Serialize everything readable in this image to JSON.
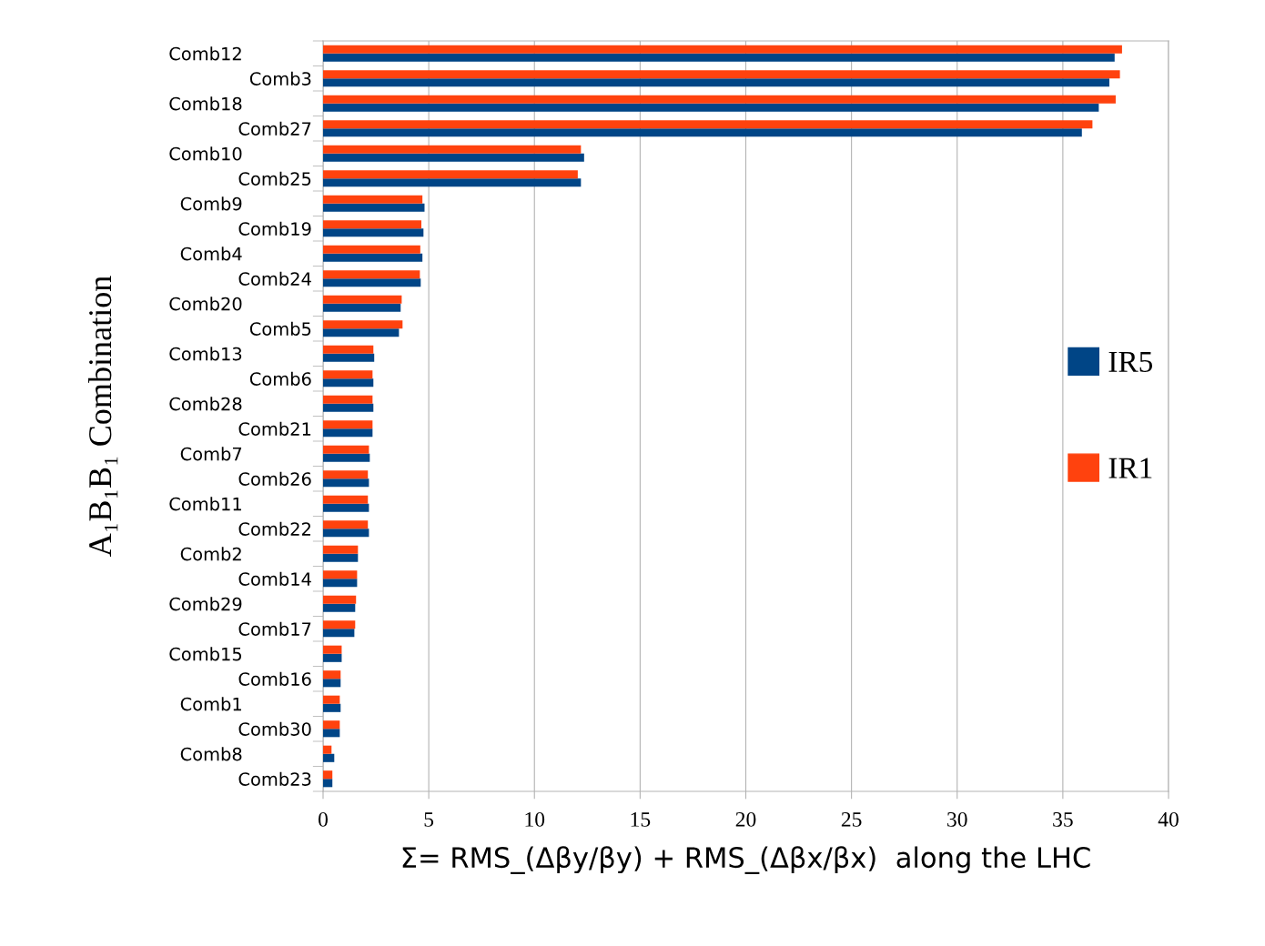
{
  "chart_data": {
    "type": "bar",
    "orientation": "horizontal",
    "xlabel": "Σ= RMS_(Δβy/βy) + RMS_(Δβx/βx)  along the LHC",
    "ylabel": "A₁B₁B₁ Combination",
    "categories": [
      "Comb12",
      "Comb3",
      "Comb18",
      "Comb27",
      "Comb10",
      "Comb25",
      "Comb9",
      "Comb19",
      "Comb4",
      "Comb24",
      "Comb20",
      "Comb5",
      "Comb13",
      "Comb6",
      "Comb28",
      "Comb21",
      "Comb7",
      "Comb26",
      "Comb11",
      "Comb22",
      "Comb2",
      "Comb14",
      "Comb29",
      "Comb17",
      "Comb15",
      "Comb16",
      "Comb1",
      "Comb30",
      "Comb8",
      "Comb23"
    ],
    "series": [
      {
        "name": "IR5",
        "color": "#004586",
        "values": [
          37.45,
          37.2,
          36.7,
          35.9,
          12.35,
          12.2,
          4.8,
          4.75,
          4.7,
          4.62,
          3.67,
          3.59,
          2.42,
          2.38,
          2.38,
          2.34,
          2.21,
          2.17,
          2.17,
          2.17,
          1.65,
          1.61,
          1.52,
          1.48,
          0.88,
          0.83,
          0.83,
          0.79,
          0.53,
          0.44
        ]
      },
      {
        "name": "IR1",
        "color": "#ff420e",
        "values": [
          37.8,
          37.7,
          37.5,
          36.4,
          12.2,
          12.05,
          4.7,
          4.65,
          4.6,
          4.58,
          3.72,
          3.76,
          2.38,
          2.34,
          2.34,
          2.34,
          2.17,
          2.12,
          2.12,
          2.12,
          1.65,
          1.61,
          1.56,
          1.52,
          0.88,
          0.83,
          0.79,
          0.79,
          0.4,
          0.44
        ]
      }
    ],
    "xlim": [
      0,
      40
    ],
    "xticks": [
      0,
      5,
      10,
      15,
      20,
      25,
      30,
      35,
      40
    ],
    "grid": "x",
    "legend": "right"
  }
}
